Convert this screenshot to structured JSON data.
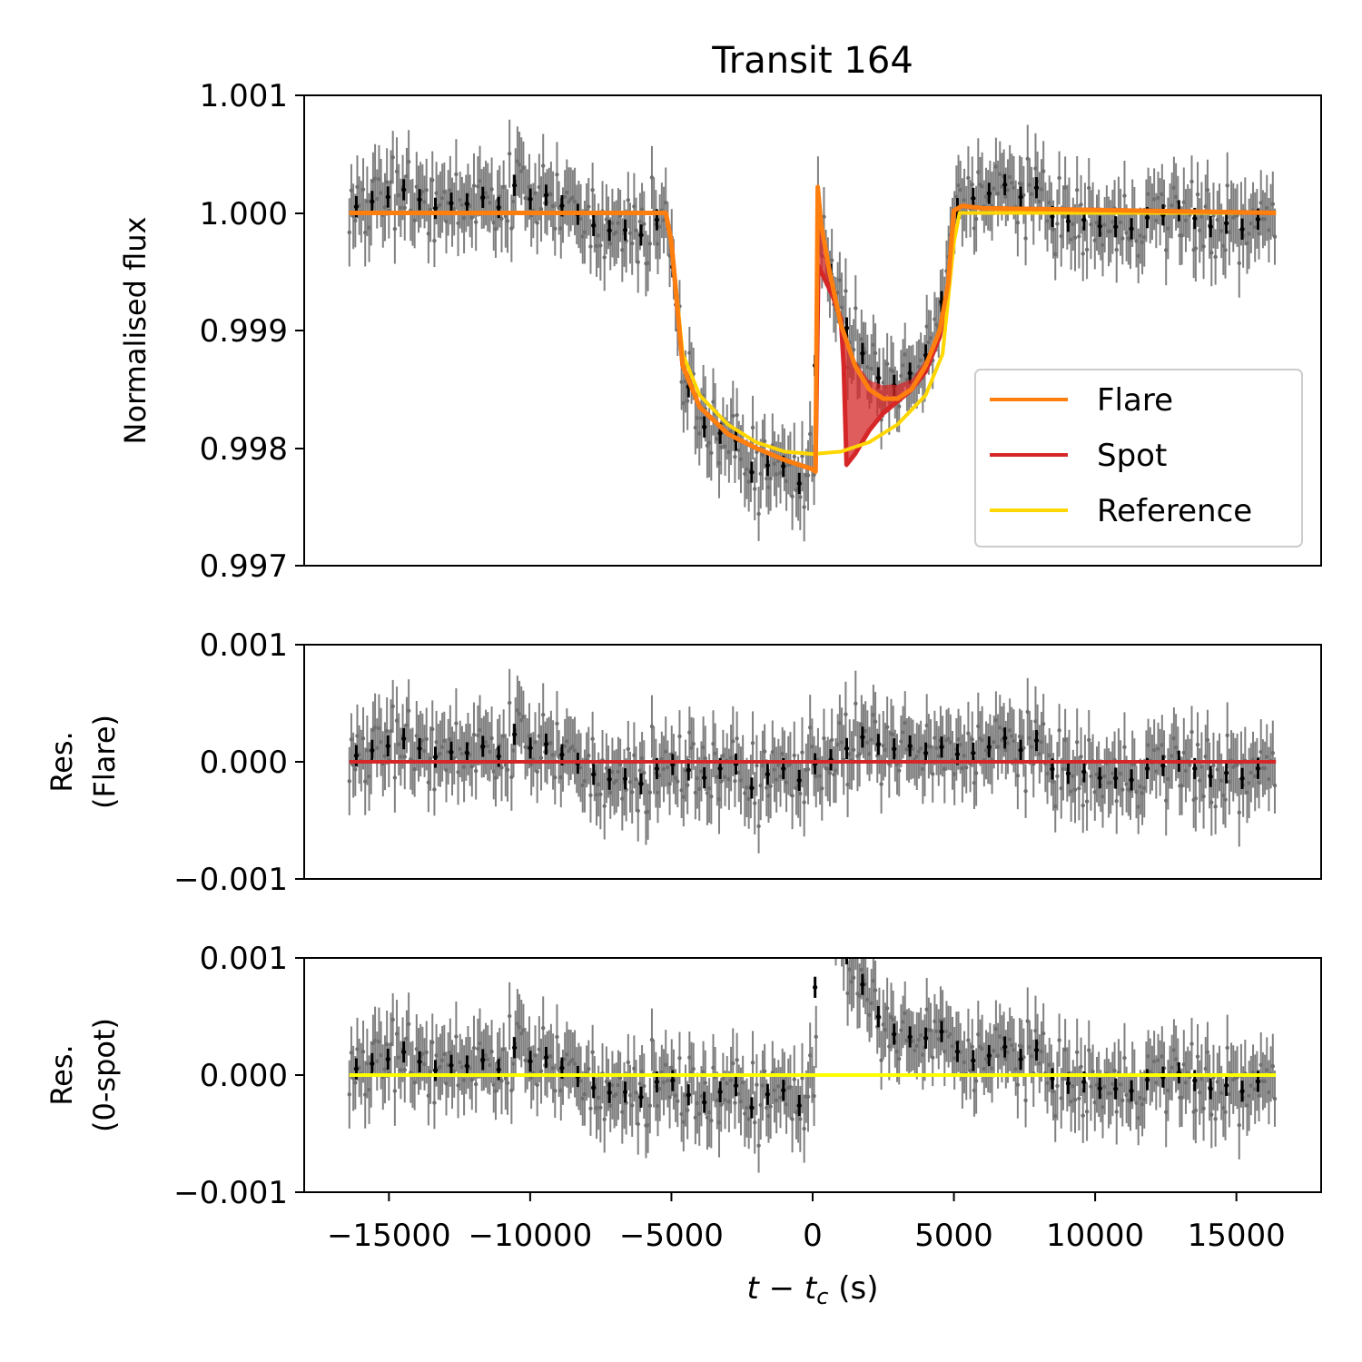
{
  "chart_data": [
    {
      "type": "line",
      "panel": "top",
      "title": "Transit 164",
      "xlabel": "t − t_c (s)",
      "ylabel": "Normalised flux",
      "xlim": [
        -18000,
        18000
      ],
      "ylim": [
        0.997,
        1.001
      ],
      "yticks": [
        "0.997",
        "0.998",
        "0.999",
        "1.000",
        "1.001"
      ],
      "legend": {
        "placement": "lower-right",
        "entries": [
          {
            "label": "Flare",
            "color": "#ff7f0e"
          },
          {
            "label": "Spot",
            "color": "#d62728"
          },
          {
            "label": "Reference",
            "color": "#ffd700"
          }
        ]
      },
      "series": [
        {
          "name": "Flare",
          "color": "#ff7f0e",
          "x": [
            -16400,
            -5200,
            -5000,
            -4600,
            -4000,
            -3000,
            -2000,
            -1000,
            0,
            100,
            180,
            300,
            600,
            1000,
            1500,
            2000,
            2500,
            3000,
            3500,
            4000,
            4500,
            4800,
            5000,
            5300,
            6000,
            16400
          ],
          "y": [
            1.0,
            1.0,
            0.99975,
            0.9987,
            0.99835,
            0.99812,
            0.998,
            0.9979,
            0.99782,
            0.9978,
            1.00022,
            0.9999,
            0.9995,
            0.99905,
            0.9987,
            0.9985,
            0.99842,
            0.99842,
            0.9985,
            0.9987,
            0.999,
            0.9994,
            1.00002,
            1.00006,
            1.00004,
            1.0
          ]
        },
        {
          "name": "Spot",
          "color": "#d62728",
          "x": [
            -16400,
            -5200,
            -5000,
            -4600,
            -4000,
            -3000,
            -2000,
            -1000,
            0,
            100,
            200,
            400,
            700,
            1000,
            1100,
            1200,
            1500,
            2000,
            2500,
            3000,
            3500,
            4000,
            4500,
            4800,
            5000,
            5300,
            6000,
            16400
          ],
          "y": [
            1.0,
            1.0,
            0.99975,
            0.9987,
            0.99835,
            0.99812,
            0.998,
            0.9979,
            0.99782,
            0.9978,
            0.99955,
            0.99945,
            0.9993,
            0.9991,
            0.9987,
            0.99786,
            0.99795,
            0.99815,
            0.9983,
            0.9984,
            0.9985,
            0.99865,
            0.99895,
            0.99935,
            1.00002,
            1.00006,
            1.00004,
            1.0
          ]
        },
        {
          "name": "Reference",
          "color": "#ffd700",
          "x": [
            -16400,
            -5200,
            -5000,
            -4600,
            -4000,
            -3000,
            -2000,
            -1000,
            0,
            1000,
            2000,
            3000,
            4000,
            4600,
            5000,
            5200,
            16400
          ],
          "y": [
            1.0,
            1.0,
            0.99975,
            0.9988,
            0.99845,
            0.9982,
            0.99805,
            0.99797,
            0.99795,
            0.99797,
            0.99805,
            0.9982,
            0.99845,
            0.9988,
            0.99975,
            1.0,
            1.0
          ]
        }
      ]
    },
    {
      "type": "scatter",
      "panel": "middle",
      "ylabel": "Res. (Flare)",
      "xlim": [
        -18000,
        18000
      ],
      "ylim": [
        -0.001,
        0.001
      ],
      "yticks": [
        "−0.001",
        "0.000",
        "0.001"
      ],
      "series": [
        {
          "name": "zero line",
          "color": "#d62728",
          "x": [
            -16400,
            16400
          ],
          "y": [
            0,
            0
          ]
        }
      ]
    },
    {
      "type": "scatter",
      "panel": "bottom",
      "ylabel": "Res. (0-spot)",
      "xlabel": "t − t_c (s)",
      "xlim": [
        -18000,
        18000
      ],
      "ylim": [
        -0.001,
        0.001
      ],
      "xticks": [
        "−15000",
        "−10000",
        "−5000",
        "0",
        "5000",
        "10000",
        "15000"
      ],
      "yticks": [
        "−0.001",
        "0.000",
        "0.001"
      ],
      "series": [
        {
          "name": "zero line",
          "color": "#ffff00",
          "x": [
            -16400,
            16400
          ],
          "y": [
            0,
            0
          ]
        }
      ]
    }
  ],
  "text": {
    "title": "Transit 164",
    "ylabel_top": "Normalised flux",
    "ylabel_mid_1": "Res.",
    "ylabel_mid_2": "(Flare)",
    "ylabel_bot_1": "Res.",
    "ylabel_bot_2": "(0-spot)",
    "xlabel_t": "t",
    "xlabel_minus": " − ",
    "xlabel_tc": "t",
    "xlabel_c": "c",
    "xlabel_unit": " (s)",
    "yt_top": [
      "0.997",
      "0.998",
      "0.999",
      "1.000",
      "1.001"
    ],
    "yt_res": [
      "−0.001",
      "0.000",
      "0.001"
    ],
    "xt": [
      "−15000",
      "−10000",
      "−5000",
      "0",
      "5000",
      "10000",
      "15000"
    ],
    "legend": [
      "Flare",
      "Spot",
      "Reference"
    ]
  }
}
